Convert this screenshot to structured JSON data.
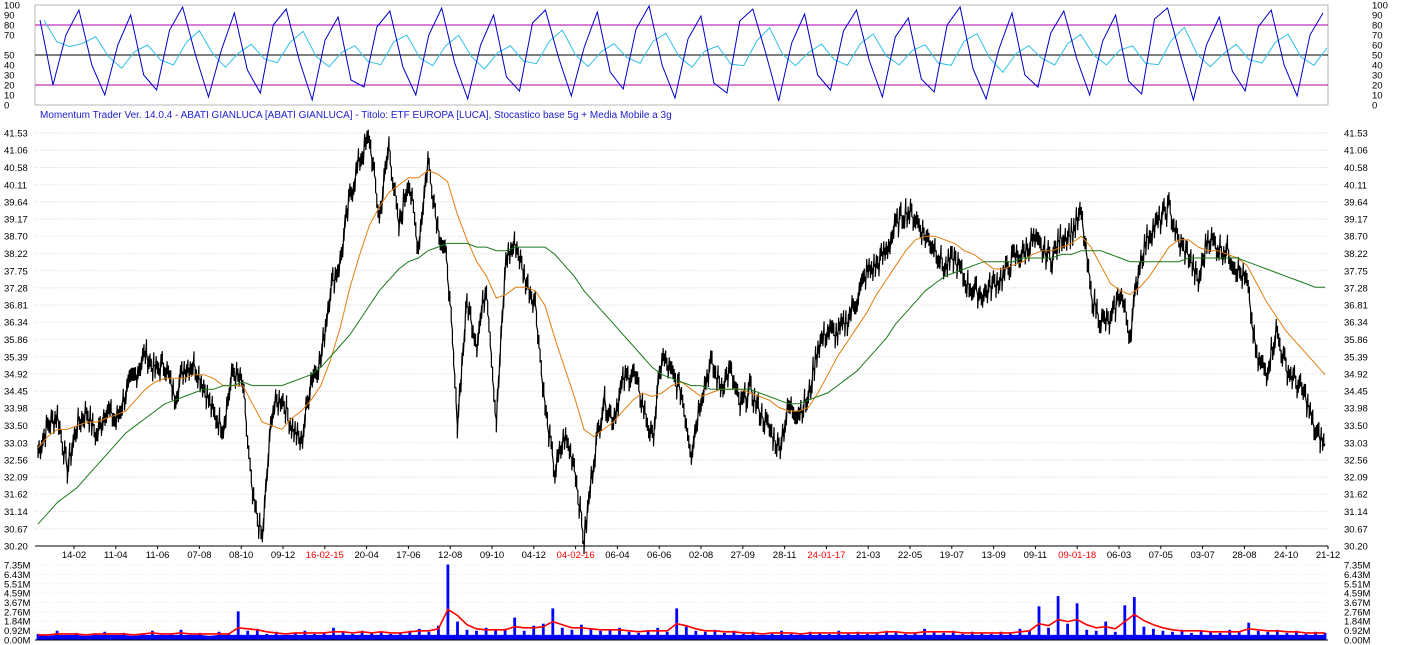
{
  "title": "Momentum Trader   Ver. 14.0.4  -  ABATI GIANLUCA  [ABATI GIANLUCA] - Titolo: ETF EUROPA  [LUCA],   Stocastico base 5g + Media Mobile a 3g",
  "colors": {
    "price": "#000000",
    "ma_short": "#e07d10",
    "ma_long": "#1a7a1a",
    "stoch_k": "#0000c8",
    "stoch_d": "#30c0e8",
    "stoch_band": "#b000b0",
    "volume_bar": "#0000ff",
    "volume_avg": "#ff0000",
    "year_label": "#ff0000",
    "title": "#1c1cd0"
  },
  "chart_data": [
    {
      "type": "line",
      "panel": "stochastic",
      "ylim": [
        0,
        100
      ],
      "y_ticks": [
        "100",
        "90",
        "80",
        "70",
        "60",
        "50",
        "40",
        "30",
        "20",
        "10",
        "0"
      ],
      "left_ticks": [
        "100",
        "90",
        "80",
        "70",
        "50",
        "40",
        "30",
        "20",
        "10",
        "0"
      ],
      "reference_lines": [
        {
          "value": 80,
          "color": "purple"
        },
        {
          "value": 50,
          "color": "black"
        },
        {
          "value": 20,
          "color": "purple"
        }
      ],
      "series": [
        {
          "values": [
            85,
            20,
            70,
            95,
            40,
            10,
            60,
            90,
            30,
            15,
            75,
            98,
            50,
            8,
            55,
            92,
            35,
            12,
            80,
            96,
            45,
            5,
            65,
            88,
            25,
            18,
            78,
            94,
            38,
            10,
            70,
            97,
            42,
            6,
            60,
            90,
            28,
            14,
            82,
            95,
            48,
            9,
            58,
            93,
            33,
            16,
            76,
            99,
            40,
            7,
            66,
            89,
            22,
            12,
            84,
            96,
            52,
            4,
            62,
            91,
            30,
            15,
            74,
            95,
            44,
            8,
            68,
            87,
            26,
            13,
            80,
            98,
            36,
            6,
            56,
            92,
            30,
            18,
            72,
            94,
            46,
            10,
            64,
            90,
            24,
            11,
            86,
            97,
            50,
            5,
            60,
            88,
            34,
            14,
            78,
            95,
            40,
            9,
            70,
            92
          ]
        }
      ]
    },
    {
      "type": "line",
      "panel": "price",
      "ylim": [
        30.2,
        41.53
      ],
      "y_ticks": [
        "41.53",
        "41.06",
        "40.58",
        "40.11",
        "39.64",
        "39.17",
        "38.70",
        "38.22",
        "37.75",
        "37.28",
        "36.81",
        "36.34",
        "35.86",
        "35.39",
        "34.92",
        "34.45",
        "33.98",
        "33.50",
        "33.03",
        "32.56",
        "32.09",
        "31.62",
        "31.14",
        "30.67",
        "30.20"
      ],
      "x_labels": [
        {
          "label": "14-02",
          "year": false
        },
        {
          "label": "11-04",
          "year": false
        },
        {
          "label": "11-06",
          "year": false
        },
        {
          "label": "07-08",
          "year": false
        },
        {
          "label": "08-10",
          "year": false
        },
        {
          "label": "09-12",
          "year": false
        },
        {
          "label": "16-02-15",
          "year": true
        },
        {
          "label": "20-04",
          "year": false
        },
        {
          "label": "17-06",
          "year": false
        },
        {
          "label": "12-08",
          "year": false
        },
        {
          "label": "09-10",
          "year": false
        },
        {
          "label": "04-12",
          "year": false
        },
        {
          "label": "04-02-16",
          "year": true
        },
        {
          "label": "06-04",
          "year": false
        },
        {
          "label": "06-06",
          "year": false
        },
        {
          "label": "02-08",
          "year": false
        },
        {
          "label": "27-09",
          "year": false
        },
        {
          "label": "28-11",
          "year": false
        },
        {
          "label": "24-01-17",
          "year": true
        },
        {
          "label": "21-03",
          "year": false
        },
        {
          "label": "22-05",
          "year": false
        },
        {
          "label": "19-07",
          "year": false
        },
        {
          "label": "13-09",
          "year": false
        },
        {
          "label": "09-11",
          "year": false
        },
        {
          "label": "09-01-18",
          "year": true
        },
        {
          "label": "06-03",
          "year": false
        },
        {
          "label": "07-05",
          "year": false
        },
        {
          "label": "03-07",
          "year": false
        },
        {
          "label": "28-08",
          "year": false
        },
        {
          "label": "24-10",
          "year": false
        },
        {
          "label": "21-12",
          "year": false
        }
      ],
      "series": [
        {
          "name": "price",
          "values": [
            32.8,
            33.5,
            33.8,
            32.3,
            33.5,
            33.9,
            33.2,
            34.0,
            33.6,
            34.4,
            34.9,
            35.5,
            35.0,
            35.2,
            34.3,
            35.1,
            35.2,
            34.6,
            33.8,
            33.5,
            35.0,
            34.6,
            31.5,
            30.4,
            33.9,
            34.3,
            33.5,
            33.0,
            34.8,
            35.3,
            37.3,
            38.0,
            39.8,
            40.8,
            41.4,
            39.2,
            41.2,
            38.9,
            40.3,
            38.4,
            40.8,
            39.0,
            37.9,
            33.6,
            36.9,
            35.8,
            37.4,
            33.6,
            38.1,
            38.5,
            37.5,
            36.9,
            34.0,
            32.2,
            33.2,
            32.5,
            30.3,
            32.6,
            34.2,
            33.7,
            34.7,
            35.0,
            34.1,
            33.1,
            35.4,
            34.9,
            34.4,
            32.8,
            34.3,
            35.2,
            34.6,
            35.0,
            34.0,
            34.5,
            33.9,
            33.4,
            32.9,
            34.0,
            33.9,
            34.2,
            35.7,
            36.1,
            36.0,
            36.4,
            37.0,
            37.7,
            37.9,
            38.3,
            39.0,
            39.4,
            39.2,
            38.7,
            38.4,
            37.8,
            38.1,
            37.5,
            37.2,
            37.1,
            37.4,
            37.6,
            38.1,
            38.2,
            38.6,
            38.3,
            38.1,
            38.7,
            38.8,
            39.3,
            37.1,
            36.4,
            36.3,
            37.2,
            36.0,
            38.0,
            38.8,
            39.1,
            39.5,
            38.5,
            38.2,
            37.4,
            38.7,
            38.4,
            38.3,
            37.8,
            37.4,
            35.3,
            35.0,
            36.1,
            35.1,
            34.7,
            34.3,
            33.3,
            33.0
          ]
        },
        {
          "name": "ma_short",
          "values": [
            32.9,
            33.2,
            33.4,
            33.4,
            33.5,
            33.6,
            33.6,
            33.7,
            33.8,
            33.9,
            34.2,
            34.5,
            34.7,
            34.8,
            34.8,
            34.8,
            34.9,
            34.9,
            34.8,
            34.6,
            34.6,
            34.6,
            34.1,
            33.6,
            33.5,
            33.4,
            33.7,
            33.9,
            34.2,
            34.6,
            35.3,
            36.2,
            37.3,
            38.2,
            39.0,
            39.5,
            39.9,
            40.1,
            40.3,
            40.3,
            40.5,
            40.4,
            40.2,
            39.3,
            38.6,
            38.0,
            37.6,
            37.0,
            37.1,
            37.3,
            37.3,
            37.2,
            36.8,
            35.9,
            35.1,
            34.3,
            33.4,
            33.2,
            33.4,
            33.6,
            33.9,
            34.2,
            34.4,
            34.3,
            34.4,
            34.6,
            34.7,
            34.5,
            34.3,
            34.4,
            34.5,
            34.5,
            34.5,
            34.4,
            34.3,
            34.2,
            34.0,
            33.9,
            33.9,
            34.0,
            34.4,
            34.9,
            35.4,
            35.8,
            36.2,
            36.6,
            37.1,
            37.5,
            37.9,
            38.3,
            38.6,
            38.7,
            38.7,
            38.6,
            38.5,
            38.3,
            38.2,
            38.0,
            37.8,
            37.8,
            37.9,
            38.0,
            38.2,
            38.3,
            38.3,
            38.4,
            38.5,
            38.7,
            38.4,
            37.9,
            37.4,
            37.2,
            37.1,
            37.3,
            37.6,
            38.0,
            38.4,
            38.6,
            38.6,
            38.4,
            38.3,
            38.3,
            38.2,
            38.1,
            37.9,
            37.4,
            36.9,
            36.5,
            36.1,
            35.8,
            35.5,
            35.2,
            34.9
          ]
        },
        {
          "name": "ma_long",
          "values": [
            30.8,
            31.1,
            31.4,
            31.6,
            31.8,
            32.1,
            32.4,
            32.7,
            33.0,
            33.3,
            33.5,
            33.7,
            33.9,
            34.1,
            34.2,
            34.3,
            34.4,
            34.5,
            34.5,
            34.6,
            34.6,
            34.7,
            34.6,
            34.6,
            34.6,
            34.6,
            34.7,
            34.8,
            34.9,
            35.1,
            35.4,
            35.7,
            36.0,
            36.4,
            36.8,
            37.2,
            37.5,
            37.8,
            38.0,
            38.1,
            38.3,
            38.4,
            38.5,
            38.5,
            38.5,
            38.4,
            38.4,
            38.3,
            38.3,
            38.4,
            38.4,
            38.4,
            38.4,
            38.2,
            37.9,
            37.6,
            37.2,
            36.9,
            36.6,
            36.3,
            36.0,
            35.7,
            35.4,
            35.1,
            34.9,
            34.8,
            34.7,
            34.6,
            34.6,
            34.5,
            34.5,
            34.5,
            34.5,
            34.5,
            34.4,
            34.3,
            34.2,
            34.1,
            34.1,
            34.2,
            34.3,
            34.4,
            34.6,
            34.8,
            35.0,
            35.3,
            35.6,
            35.9,
            36.3,
            36.6,
            36.9,
            37.2,
            37.4,
            37.6,
            37.7,
            37.8,
            37.9,
            38.0,
            38.0,
            38.0,
            38.0,
            38.1,
            38.1,
            38.1,
            38.1,
            38.2,
            38.2,
            38.3,
            38.3,
            38.3,
            38.2,
            38.1,
            38.0,
            38.0,
            38.0,
            38.0,
            38.0,
            38.0,
            38.1,
            38.1,
            38.1,
            38.1,
            38.1,
            38.1,
            38.0,
            37.9,
            37.8,
            37.7,
            37.6,
            37.5,
            37.4,
            37.3,
            37.3
          ]
        }
      ]
    },
    {
      "type": "bar",
      "panel": "volume",
      "ylim": [
        0,
        7.35
      ],
      "y_ticks": [
        "7.35M",
        "6.43M",
        "5.51M",
        "4.59M",
        "3.67M",
        "2.76M",
        "1.84M",
        "0.92M",
        "0.00M"
      ],
      "series": [
        {
          "name": "volume",
          "values": [
            0.6,
            0.4,
            0.9,
            0.5,
            0.7,
            0.4,
            0.6,
            0.8,
            0.5,
            0.7,
            0.4,
            0.6,
            0.9,
            0.5,
            0.6,
            1.0,
            0.5,
            0.7,
            0.4,
            0.8,
            0.6,
            2.8,
            0.9,
            1.1,
            0.6,
            0.8,
            0.5,
            0.7,
            0.9,
            0.6,
            0.7,
            1.2,
            0.8,
            0.6,
            0.9,
            0.7,
            0.8,
            0.6,
            0.7,
            0.9,
            1.1,
            0.8,
            1.4,
            7.4,
            1.8,
            1.0,
            0.9,
            1.2,
            1.0,
            1.1,
            2.2,
            0.9,
            1.4,
            1.6,
            3.1,
            1.2,
            1.0,
            1.5,
            1.1,
            0.9,
            1.0,
            1.2,
            0.8,
            0.7,
            0.9,
            1.2,
            0.8,
            3.1,
            1.3,
            0.9,
            0.8,
            1.0,
            0.7,
            0.9,
            0.6,
            0.8,
            0.5,
            0.7,
            0.9,
            0.6,
            0.6,
            0.8,
            0.7,
            0.6,
            0.9,
            0.7,
            0.8,
            0.6,
            0.7,
            0.9,
            0.8,
            0.6,
            0.7,
            1.1,
            0.8,
            0.7,
            0.9,
            0.6,
            0.8,
            0.7,
            0.6,
            0.8,
            0.7,
            1.1,
            0.9,
            3.3,
            1.2,
            4.3,
            1.6,
            3.6,
            1.0,
            0.9,
            1.8,
            0.8,
            3.4,
            4.2,
            1.3,
            1.1,
            0.9,
            0.8,
            1.0,
            0.7,
            0.9,
            0.8,
            0.7,
            1.0,
            0.8,
            1.7,
            0.9,
            0.8,
            1.0,
            0.7,
            0.9,
            0.6,
            0.8,
            0.7
          ]
        },
        {
          "name": "volume_avg",
          "values": [
            0.5,
            0.5,
            0.6,
            0.6,
            0.6,
            0.5,
            0.6,
            0.6,
            0.6,
            0.6,
            0.5,
            0.6,
            0.7,
            0.6,
            0.6,
            0.7,
            0.6,
            0.6,
            0.6,
            0.6,
            0.6,
            1.2,
            1.1,
            1.0,
            0.8,
            0.7,
            0.6,
            0.7,
            0.7,
            0.7,
            0.7,
            0.8,
            0.8,
            0.7,
            0.8,
            0.7,
            0.8,
            0.7,
            0.7,
            0.8,
            0.9,
            0.9,
            1.1,
            3.0,
            2.4,
            1.5,
            1.1,
            1.0,
            1.0,
            1.0,
            1.3,
            1.2,
            1.2,
            1.3,
            1.8,
            1.5,
            1.2,
            1.2,
            1.1,
            1.0,
            1.0,
            1.0,
            0.9,
            0.8,
            0.9,
            0.9,
            0.9,
            1.6,
            1.4,
            1.1,
            0.9,
            0.9,
            0.8,
            0.8,
            0.7,
            0.7,
            0.6,
            0.7,
            0.7,
            0.7,
            0.6,
            0.7,
            0.7,
            0.7,
            0.7,
            0.7,
            0.7,
            0.7,
            0.7,
            0.8,
            0.8,
            0.7,
            0.7,
            0.8,
            0.8,
            0.8,
            0.8,
            0.7,
            0.7,
            0.7,
            0.7,
            0.7,
            0.7,
            0.8,
            0.9,
            1.6,
            1.4,
            2.0,
            1.8,
            2.0,
            1.5,
            1.2,
            1.3,
            1.1,
            1.8,
            2.5,
            1.9,
            1.5,
            1.2,
            1.0,
            0.9,
            0.9,
            0.9,
            0.8,
            0.8,
            0.8,
            0.8,
            1.1,
            1.0,
            0.9,
            0.9,
            0.8,
            0.8,
            0.7,
            0.7,
            0.7
          ]
        }
      ]
    }
  ]
}
